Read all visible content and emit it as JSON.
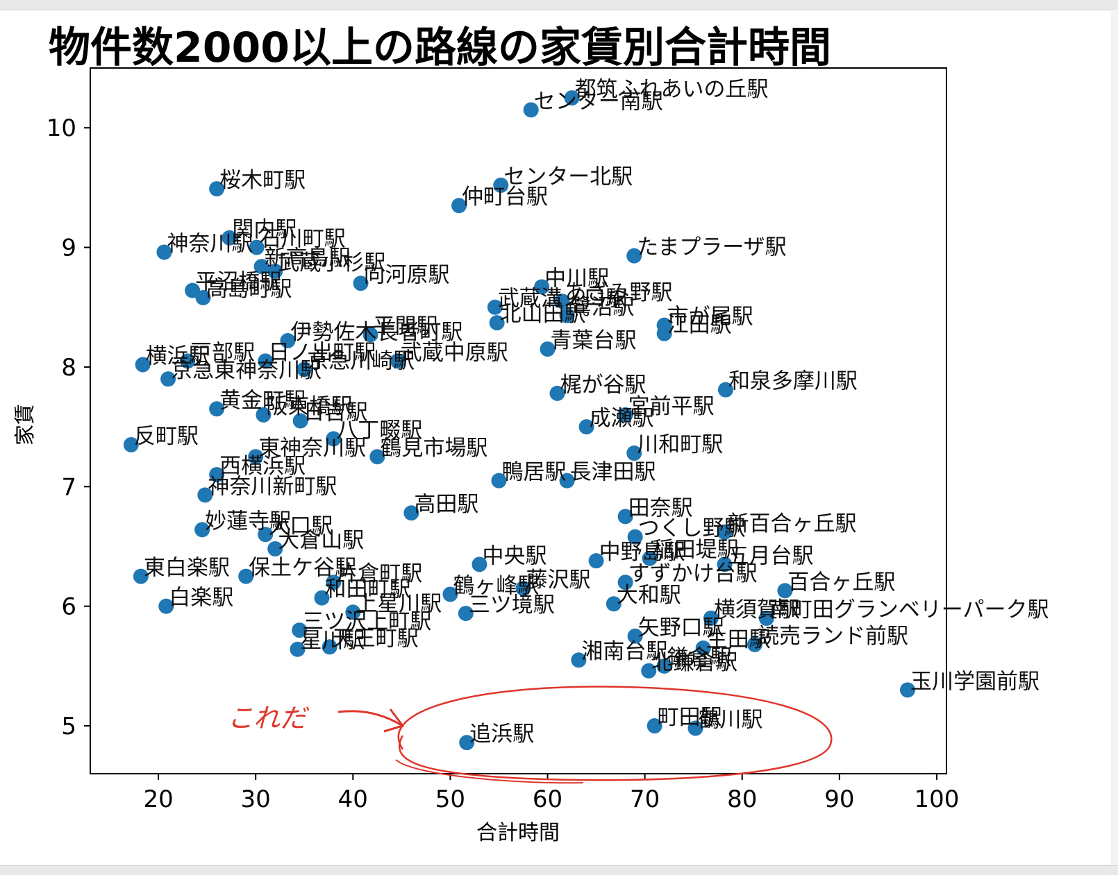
{
  "chart_data": {
    "type": "scatter",
    "title": "物件数2000以上の路線の家賃別合計時間",
    "xlabel": "合計時間",
    "ylabel": "家賃",
    "xlim": [
      13,
      101
    ],
    "ylim": [
      4.6,
      10.5
    ],
    "xticks": [
      20,
      30,
      40,
      50,
      60,
      70,
      80,
      90,
      100
    ],
    "yticks": [
      5,
      6,
      7,
      8,
      9,
      10
    ],
    "grid": false,
    "point_color": "#1f77b4",
    "points": [
      {
        "x": 62.5,
        "y": 10.25,
        "label": "都筑ふれあいの丘駅"
      },
      {
        "x": 58.3,
        "y": 10.15,
        "label": "センター南駅"
      },
      {
        "x": 55.2,
        "y": 9.52,
        "label": "センター北駅"
      },
      {
        "x": 50.9,
        "y": 9.35,
        "label": "仲町台駅"
      },
      {
        "x": 26.0,
        "y": 9.49,
        "label": "桜木町駅"
      },
      {
        "x": 27.3,
        "y": 9.08,
        "label": "関内駅"
      },
      {
        "x": 30.1,
        "y": 9.0,
        "label": "石川町駅"
      },
      {
        "x": 20.6,
        "y": 8.96,
        "label": "神奈川駅"
      },
      {
        "x": 30.6,
        "y": 8.84,
        "label": "新高島駅"
      },
      {
        "x": 32.0,
        "y": 8.8,
        "label": "武蔵小杉駅"
      },
      {
        "x": 40.8,
        "y": 8.7,
        "label": "向河原駅"
      },
      {
        "x": 23.5,
        "y": 8.64,
        "label": "平沼橋駅"
      },
      {
        "x": 24.6,
        "y": 8.58,
        "label": "高島町駅"
      },
      {
        "x": 68.9,
        "y": 8.93,
        "label": "たまプラーザ駅"
      },
      {
        "x": 59.4,
        "y": 8.67,
        "label": "中川駅"
      },
      {
        "x": 54.6,
        "y": 8.5,
        "label": "武蔵溝ノ口駅"
      },
      {
        "x": 61.5,
        "y": 8.55,
        "label": "あざみ野駅"
      },
      {
        "x": 54.8,
        "y": 8.37,
        "label": "北山田駅"
      },
      {
        "x": 62.0,
        "y": 8.43,
        "label": "鷺沼駅"
      },
      {
        "x": 72.0,
        "y": 8.35,
        "label": "市が尾駅"
      },
      {
        "x": 72.0,
        "y": 8.28,
        "label": "江田駅"
      },
      {
        "x": 60.0,
        "y": 8.15,
        "label": "青葉台駅"
      },
      {
        "x": 33.3,
        "y": 8.22,
        "label": "伊勢佐木長者町駅"
      },
      {
        "x": 41.8,
        "y": 8.27,
        "label": "平間駅"
      },
      {
        "x": 18.4,
        "y": 8.02,
        "label": "横浜駅"
      },
      {
        "x": 21.0,
        "y": 7.9,
        "label": "京急東神奈川駅"
      },
      {
        "x": 23.0,
        "y": 8.05,
        "label": "戸部駅"
      },
      {
        "x": 31.0,
        "y": 8.05,
        "label": "日ノ出町駅"
      },
      {
        "x": 35.0,
        "y": 7.98,
        "label": "京急川崎駅"
      },
      {
        "x": 44.6,
        "y": 8.05,
        "label": "武蔵中原駅"
      },
      {
        "x": 78.3,
        "y": 7.81,
        "label": "和泉多摩川駅"
      },
      {
        "x": 68.0,
        "y": 7.6,
        "label": "宮前平駅"
      },
      {
        "x": 64.0,
        "y": 7.5,
        "label": "成瀬駅"
      },
      {
        "x": 61.0,
        "y": 7.78,
        "label": "梶が谷駅"
      },
      {
        "x": 26.0,
        "y": 7.65,
        "label": "黄金町駅"
      },
      {
        "x": 30.8,
        "y": 7.6,
        "label": "阪東橋駅"
      },
      {
        "x": 34.6,
        "y": 7.55,
        "label": "日吉駅"
      },
      {
        "x": 17.2,
        "y": 7.35,
        "label": "反町駅"
      },
      {
        "x": 68.9,
        "y": 7.28,
        "label": "川和町駅"
      },
      {
        "x": 30.0,
        "y": 7.25,
        "label": "東神奈川駅"
      },
      {
        "x": 38.0,
        "y": 7.4,
        "label": "八丁畷駅"
      },
      {
        "x": 42.5,
        "y": 7.25,
        "label": "鶴見市場駅"
      },
      {
        "x": 26.0,
        "y": 7.1,
        "label": "西横浜駅"
      },
      {
        "x": 24.8,
        "y": 6.93,
        "label": "神奈川新町駅"
      },
      {
        "x": 55.0,
        "y": 7.05,
        "label": "鴨居駅"
      },
      {
        "x": 62.0,
        "y": 7.05,
        "label": "長津田駅"
      },
      {
        "x": 68.0,
        "y": 6.75,
        "label": "田奈駅"
      },
      {
        "x": 46.0,
        "y": 6.78,
        "label": "高田駅"
      },
      {
        "x": 24.5,
        "y": 6.64,
        "label": "妙蓮寺駅"
      },
      {
        "x": 31.0,
        "y": 6.6,
        "label": "大口駅"
      },
      {
        "x": 32.0,
        "y": 6.48,
        "label": "大倉山駅"
      },
      {
        "x": 69.0,
        "y": 6.58,
        "label": "つくし野駅"
      },
      {
        "x": 78.2,
        "y": 6.62,
        "label": "新百合ヶ丘駅"
      },
      {
        "x": 18.2,
        "y": 6.25,
        "label": "東白楽駅"
      },
      {
        "x": 29.0,
        "y": 6.25,
        "label": "保土ケ谷駅"
      },
      {
        "x": 53.0,
        "y": 6.35,
        "label": "中央駅"
      },
      {
        "x": 65.0,
        "y": 6.38,
        "label": "中野島駅"
      },
      {
        "x": 70.5,
        "y": 6.4,
        "label": "稲田堤駅"
      },
      {
        "x": 78.2,
        "y": 6.35,
        "label": "五月台駅"
      },
      {
        "x": 68.0,
        "y": 6.2,
        "label": "すずかけ台駅"
      },
      {
        "x": 84.4,
        "y": 6.13,
        "label": "百合ヶ丘駅"
      },
      {
        "x": 20.8,
        "y": 6.0,
        "label": "白楽駅"
      },
      {
        "x": 38.0,
        "y": 6.2,
        "label": "片倉町駅"
      },
      {
        "x": 50.0,
        "y": 6.1,
        "label": "鶴ヶ峰駅"
      },
      {
        "x": 57.5,
        "y": 6.15,
        "label": "藤沢駅"
      },
      {
        "x": 66.8,
        "y": 6.02,
        "label": "大和駅"
      },
      {
        "x": 51.6,
        "y": 5.94,
        "label": "三ツ境駅"
      },
      {
        "x": 36.8,
        "y": 6.07,
        "label": "和田町駅"
      },
      {
        "x": 40.0,
        "y": 5.95,
        "label": "上星川駅"
      },
      {
        "x": 34.5,
        "y": 5.8,
        "label": "三ツ沢上町駅"
      },
      {
        "x": 34.3,
        "y": 5.64,
        "label": "星川駅"
      },
      {
        "x": 37.6,
        "y": 5.66,
        "label": "天王町駅"
      },
      {
        "x": 76.8,
        "y": 5.9,
        "label": "横須賀駅"
      },
      {
        "x": 82.5,
        "y": 5.9,
        "label": "南町田グランベリーパーク駅"
      },
      {
        "x": 69.0,
        "y": 5.75,
        "label": "矢野口駅"
      },
      {
        "x": 76.0,
        "y": 5.65,
        "label": "生田駅"
      },
      {
        "x": 81.3,
        "y": 5.68,
        "label": "読売ランド前駅"
      },
      {
        "x": 63.2,
        "y": 5.55,
        "label": "湘南台駅"
      },
      {
        "x": 70.4,
        "y": 5.46,
        "label": "北鎌倉駅"
      },
      {
        "x": 72.0,
        "y": 5.5,
        "label": "鎌倉駅"
      },
      {
        "x": 97.0,
        "y": 5.3,
        "label": "玉川学園前駅"
      },
      {
        "x": 51.7,
        "y": 4.86,
        "label": "追浜駅"
      },
      {
        "x": 71.0,
        "y": 5.0,
        "label": "町田駅"
      },
      {
        "x": 75.2,
        "y": 4.98,
        "label": "鶴川駅"
      }
    ]
  },
  "annotation": {
    "text": "これだ",
    "color": "#e0352b"
  }
}
